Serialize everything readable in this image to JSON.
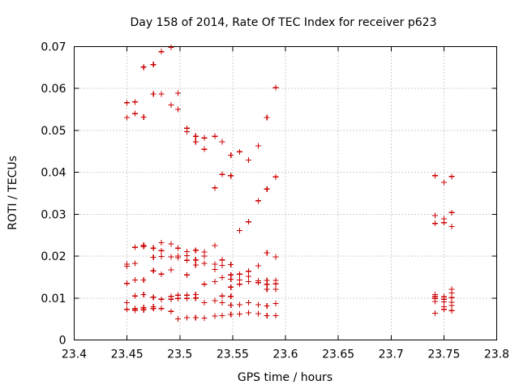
{
  "chart_data": {
    "type": "scatter",
    "title": "Day 158 of 2014, Rate Of TEC Index for receiver p623",
    "xlabel": "GPS time / hours",
    "ylabel": "ROTI / TECUs",
    "xlim": [
      23.4,
      23.8
    ],
    "ylim": [
      0,
      0.07
    ],
    "xticks": [
      23.4,
      23.45,
      23.5,
      23.55,
      23.6,
      23.65,
      23.7,
      23.75,
      23.8
    ],
    "xtick_labels": [
      "23.4",
      "23.45",
      "23.5",
      "23.55",
      "23.6",
      "23.65",
      "23.7",
      "23.75",
      "23.8"
    ],
    "yticks": [
      0,
      0.01,
      0.02,
      0.03,
      0.04,
      0.05,
      0.06,
      0.07
    ],
    "ytick_labels": [
      "0",
      "0.01",
      "0.02",
      "0.03",
      "0.04",
      "0.05",
      "0.06",
      "0.07"
    ],
    "grid": true,
    "marker": "+",
    "series": [
      {
        "name": "p623",
        "color": "#cc0000",
        "points": [
          [
            23.45,
            0.0566
          ],
          [
            23.45,
            0.0531
          ],
          [
            23.45,
            0.0181
          ],
          [
            23.45,
            0.0176
          ],
          [
            23.45,
            0.0135
          ],
          [
            23.45,
            0.0089
          ],
          [
            23.45,
            0.0073
          ],
          [
            23.4575,
            0.0568
          ],
          [
            23.4575,
            0.054
          ],
          [
            23.4575,
            0.0221
          ],
          [
            23.4575,
            0.0183
          ],
          [
            23.4575,
            0.0143
          ],
          [
            23.4575,
            0.0105
          ],
          [
            23.4575,
            0.0075
          ],
          [
            23.4575,
            0.0071
          ],
          [
            23.4658,
            0.0651
          ],
          [
            23.4658,
            0.0532
          ],
          [
            23.4658,
            0.0226
          ],
          [
            23.4658,
            0.0223
          ],
          [
            23.4658,
            0.0143
          ],
          [
            23.4658,
            0.0108
          ],
          [
            23.4658,
            0.0077
          ],
          [
            23.4658,
            0.0072
          ],
          [
            23.475,
            0.0657
          ],
          [
            23.475,
            0.0587
          ],
          [
            23.475,
            0.0219
          ],
          [
            23.475,
            0.0197
          ],
          [
            23.475,
            0.0165
          ],
          [
            23.475,
            0.0102
          ],
          [
            23.475,
            0.0079
          ],
          [
            23.475,
            0.0075
          ],
          [
            23.4825,
            0.0688
          ],
          [
            23.4825,
            0.0587
          ],
          [
            23.4825,
            0.0232
          ],
          [
            23.4825,
            0.0213
          ],
          [
            23.4825,
            0.0199
          ],
          [
            23.4825,
            0.0157
          ],
          [
            23.4825,
            0.0097
          ],
          [
            23.4825,
            0.0075
          ],
          [
            23.4917,
            0.0698
          ],
          [
            23.4917,
            0.0561
          ],
          [
            23.4917,
            0.0229
          ],
          [
            23.4917,
            0.0198
          ],
          [
            23.4917,
            0.0167
          ],
          [
            23.4917,
            0.0104
          ],
          [
            23.4917,
            0.0097
          ],
          [
            23.4917,
            0.0068
          ],
          [
            23.4983,
            0.0589
          ],
          [
            23.4983,
            0.055
          ],
          [
            23.4983,
            0.0219
          ],
          [
            23.4983,
            0.02
          ],
          [
            23.4983,
            0.0196
          ],
          [
            23.4983,
            0.0107
          ],
          [
            23.4983,
            0.0099
          ],
          [
            23.4983,
            0.005
          ],
          [
            23.5067,
            0.0505
          ],
          [
            23.5067,
            0.0497
          ],
          [
            23.5067,
            0.0211
          ],
          [
            23.5067,
            0.0201
          ],
          [
            23.5067,
            0.019
          ],
          [
            23.5067,
            0.0155
          ],
          [
            23.5067,
            0.0107
          ],
          [
            23.5067,
            0.0099
          ],
          [
            23.5067,
            0.0053
          ],
          [
            23.515,
            0.0486
          ],
          [
            23.515,
            0.0473
          ],
          [
            23.515,
            0.0214
          ],
          [
            23.515,
            0.0191
          ],
          [
            23.515,
            0.0179
          ],
          [
            23.515,
            0.0108
          ],
          [
            23.515,
            0.01
          ],
          [
            23.515,
            0.0053
          ],
          [
            23.5233,
            0.0482
          ],
          [
            23.5233,
            0.0455
          ],
          [
            23.5233,
            0.021
          ],
          [
            23.5233,
            0.02
          ],
          [
            23.5233,
            0.0183
          ],
          [
            23.5233,
            0.0133
          ],
          [
            23.5233,
            0.0089
          ],
          [
            23.5233,
            0.0052
          ],
          [
            23.5333,
            0.0486
          ],
          [
            23.5333,
            0.0363
          ],
          [
            23.5333,
            0.0225
          ],
          [
            23.5333,
            0.0181
          ],
          [
            23.5333,
            0.0168
          ],
          [
            23.5333,
            0.0139
          ],
          [
            23.5333,
            0.0094
          ],
          [
            23.5333,
            0.0057
          ],
          [
            23.54,
            0.0473
          ],
          [
            23.54,
            0.0395
          ],
          [
            23.54,
            0.0191
          ],
          [
            23.54,
            0.0178
          ],
          [
            23.54,
            0.0149
          ],
          [
            23.54,
            0.0105
          ],
          [
            23.54,
            0.0089
          ],
          [
            23.54,
            0.0058
          ],
          [
            23.5483,
            0.0441
          ],
          [
            23.5483,
            0.0392
          ],
          [
            23.5483,
            0.018
          ],
          [
            23.5483,
            0.0155
          ],
          [
            23.5483,
            0.0145
          ],
          [
            23.5483,
            0.0126
          ],
          [
            23.5483,
            0.0104
          ],
          [
            23.5483,
            0.0083
          ],
          [
            23.5483,
            0.0061
          ],
          [
            23.5567,
            0.0449
          ],
          [
            23.5567,
            0.0261
          ],
          [
            23.5567,
            0.0157
          ],
          [
            23.5567,
            0.0143
          ],
          [
            23.5567,
            0.0133
          ],
          [
            23.5567,
            0.0084
          ],
          [
            23.5567,
            0.0062
          ],
          [
            23.565,
            0.0429
          ],
          [
            23.565,
            0.0282
          ],
          [
            23.565,
            0.0164
          ],
          [
            23.565,
            0.0152
          ],
          [
            23.565,
            0.0139
          ],
          [
            23.565,
            0.0089
          ],
          [
            23.565,
            0.0065
          ],
          [
            23.5742,
            0.0463
          ],
          [
            23.5742,
            0.0332
          ],
          [
            23.5742,
            0.0177
          ],
          [
            23.5742,
            0.0141
          ],
          [
            23.5742,
            0.0137
          ],
          [
            23.5742,
            0.0084
          ],
          [
            23.5742,
            0.0063
          ],
          [
            23.5825,
            0.0531
          ],
          [
            23.5825,
            0.036
          ],
          [
            23.5825,
            0.0208
          ],
          [
            23.5825,
            0.0142
          ],
          [
            23.5825,
            0.0133
          ],
          [
            23.5825,
            0.0121
          ],
          [
            23.5825,
            0.0081
          ],
          [
            23.5825,
            0.0058
          ],
          [
            23.5908,
            0.0602
          ],
          [
            23.5908,
            0.0389
          ],
          [
            23.5908,
            0.0198
          ],
          [
            23.5908,
            0.0142
          ],
          [
            23.5908,
            0.0134
          ],
          [
            23.5908,
            0.0121
          ],
          [
            23.5908,
            0.0087
          ],
          [
            23.5908,
            0.0058
          ],
          [
            23.7417,
            0.0392
          ],
          [
            23.7417,
            0.0297
          ],
          [
            23.7417,
            0.0278
          ],
          [
            23.7417,
            0.0108
          ],
          [
            23.7417,
            0.0104
          ],
          [
            23.7417,
            0.0099
          ],
          [
            23.7417,
            0.0092
          ],
          [
            23.7417,
            0.0064
          ],
          [
            23.75,
            0.0376
          ],
          [
            23.75,
            0.0289
          ],
          [
            23.75,
            0.028
          ],
          [
            23.75,
            0.0103
          ],
          [
            23.75,
            0.0097
          ],
          [
            23.75,
            0.0091
          ],
          [
            23.75,
            0.0079
          ],
          [
            23.75,
            0.0073
          ],
          [
            23.7575,
            0.039
          ],
          [
            23.7575,
            0.0304
          ],
          [
            23.7575,
            0.0271
          ],
          [
            23.7575,
            0.0121
          ],
          [
            23.7575,
            0.0112
          ],
          [
            23.7575,
            0.0101
          ],
          [
            23.7575,
            0.009
          ],
          [
            23.7575,
            0.0082
          ],
          [
            23.7575,
            0.007
          ]
        ]
      }
    ]
  }
}
